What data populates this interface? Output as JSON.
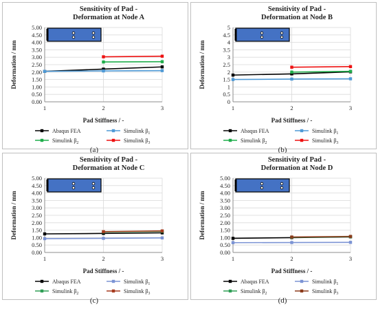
{
  "chart_data": [
    {
      "type": "line",
      "caption": "(a)",
      "title_lines": [
        "Sensitivity of Pad -",
        "Deformation at Node A"
      ],
      "xlabel": "Pad Stiffness / -",
      "ylabel": "Deformation / mm",
      "x": [
        1,
        2,
        3
      ],
      "xticks": [
        "1",
        "2",
        "3"
      ],
      "ylim": [
        0,
        5
      ],
      "yticks": [
        "0.00",
        "0.50",
        "1.00",
        "1.50",
        "2.00",
        "2.50",
        "3.00",
        "3.50",
        "4.00",
        "4.50",
        "5.00"
      ],
      "grid": true,
      "legend_position": "bottom",
      "series": [
        {
          "name": "Abaqus FEA",
          "color": "#000000",
          "values": [
            2.05,
            2.2,
            2.35
          ]
        },
        {
          "name": "Simulink β1",
          "color": "#4f9ad6",
          "values": [
            2.05,
            2.08,
            2.1
          ]
        },
        {
          "name": "Simulink β2",
          "color": "#1fad4b",
          "values": [
            null,
            2.68,
            2.7
          ]
        },
        {
          "name": "Simulink β3",
          "color": "#ee1111",
          "values": [
            null,
            3.03,
            3.07
          ]
        }
      ]
    },
    {
      "type": "line",
      "caption": "(b)",
      "title_lines": [
        "Sensitivity of Pad -",
        "Deformation at Node B"
      ],
      "xlabel": "Pad Stiffness / -",
      "ylabel": "Deformation / mm",
      "x": [
        1,
        2,
        3
      ],
      "xticks": [
        "1",
        "2",
        "3"
      ],
      "ylim": [
        0,
        5
      ],
      "yticks": [
        "0",
        "0.5",
        "1",
        "1.5",
        "2",
        "2.5",
        "3",
        "3.5",
        "4",
        "4.5",
        "5"
      ],
      "grid": true,
      "legend_position": "bottom",
      "series": [
        {
          "name": "Abaqus FEA",
          "color": "#000000",
          "values": [
            1.8,
            1.88,
            2.02
          ]
        },
        {
          "name": "Simulink β1",
          "color": "#4f9ad6",
          "values": [
            1.5,
            1.53,
            1.55
          ]
        },
        {
          "name": "Simulink β2",
          "color": "#1fad4b",
          "values": [
            null,
            2.0,
            2.05
          ]
        },
        {
          "name": "Simulink β3",
          "color": "#ee1111",
          "values": [
            null,
            2.33,
            2.37
          ]
        }
      ]
    },
    {
      "type": "line",
      "caption": "(c)",
      "title_lines": [
        "Sensitivity of Pad -",
        "Deformation at Node C"
      ],
      "xlabel": "Pad Stiffness / -",
      "ylabel": "Deformation / mm",
      "x": [
        1,
        2,
        3
      ],
      "xticks": [
        "1",
        "2",
        "3"
      ],
      "ylim": [
        0,
        5
      ],
      "yticks": [
        "0.00",
        "0.50",
        "1.00",
        "1.50",
        "2.00",
        "2.50",
        "3.00",
        "3.50",
        "4.00",
        "4.50",
        "5.00"
      ],
      "grid": true,
      "legend_position": "bottom",
      "series": [
        {
          "name": "Abaqus FEA",
          "color": "#000000",
          "values": [
            1.25,
            1.28,
            1.32
          ]
        },
        {
          "name": "Simulink β1",
          "color": "#7b93d4",
          "values": [
            0.93,
            0.95,
            0.98
          ]
        },
        {
          "name": "Simulink β2",
          "color": "#2e9e55",
          "values": [
            null,
            1.38,
            1.42
          ]
        },
        {
          "name": "Simulink β3",
          "color": "#a63a1e",
          "values": [
            null,
            1.4,
            1.45
          ]
        }
      ]
    },
    {
      "type": "line",
      "caption": "(d)",
      "title_lines": [
        "Sensitivity of Pad -",
        "Deformation at Node D"
      ],
      "xlabel": "Pad Stiffness / -",
      "ylabel": "Deformation / mm",
      "x": [
        1,
        2,
        3
      ],
      "xticks": [
        "1",
        "2",
        "3"
      ],
      "ylim": [
        0,
        5
      ],
      "yticks": [
        "0.00",
        "0.50",
        "1.00",
        "1.50",
        "2.00",
        "2.50",
        "3.00",
        "3.50",
        "4.00",
        "4.50",
        "5.00"
      ],
      "grid": true,
      "legend_position": "bottom",
      "series": [
        {
          "name": "Abaqus FEA",
          "color": "#000000",
          "values": [
            0.95,
            1.0,
            1.05
          ]
        },
        {
          "name": "Simulink β1",
          "color": "#7b93d4",
          "values": [
            0.66,
            0.67,
            0.68
          ]
        },
        {
          "name": "Simulink β2",
          "color": "#2e9e55",
          "values": [
            null,
            1.02,
            1.06
          ]
        },
        {
          "name": "Simulink β3",
          "color": "#8b3a1a",
          "values": [
            null,
            1.04,
            1.08
          ]
        }
      ]
    }
  ],
  "colors": {
    "frame": "#bfbfbf",
    "grid": "#d9d9d9",
    "axis": "#8c8c8c",
    "pad_fill": "#4472c4",
    "pad_stroke": "#000000",
    "legend_accent": "#3a6fd8"
  }
}
